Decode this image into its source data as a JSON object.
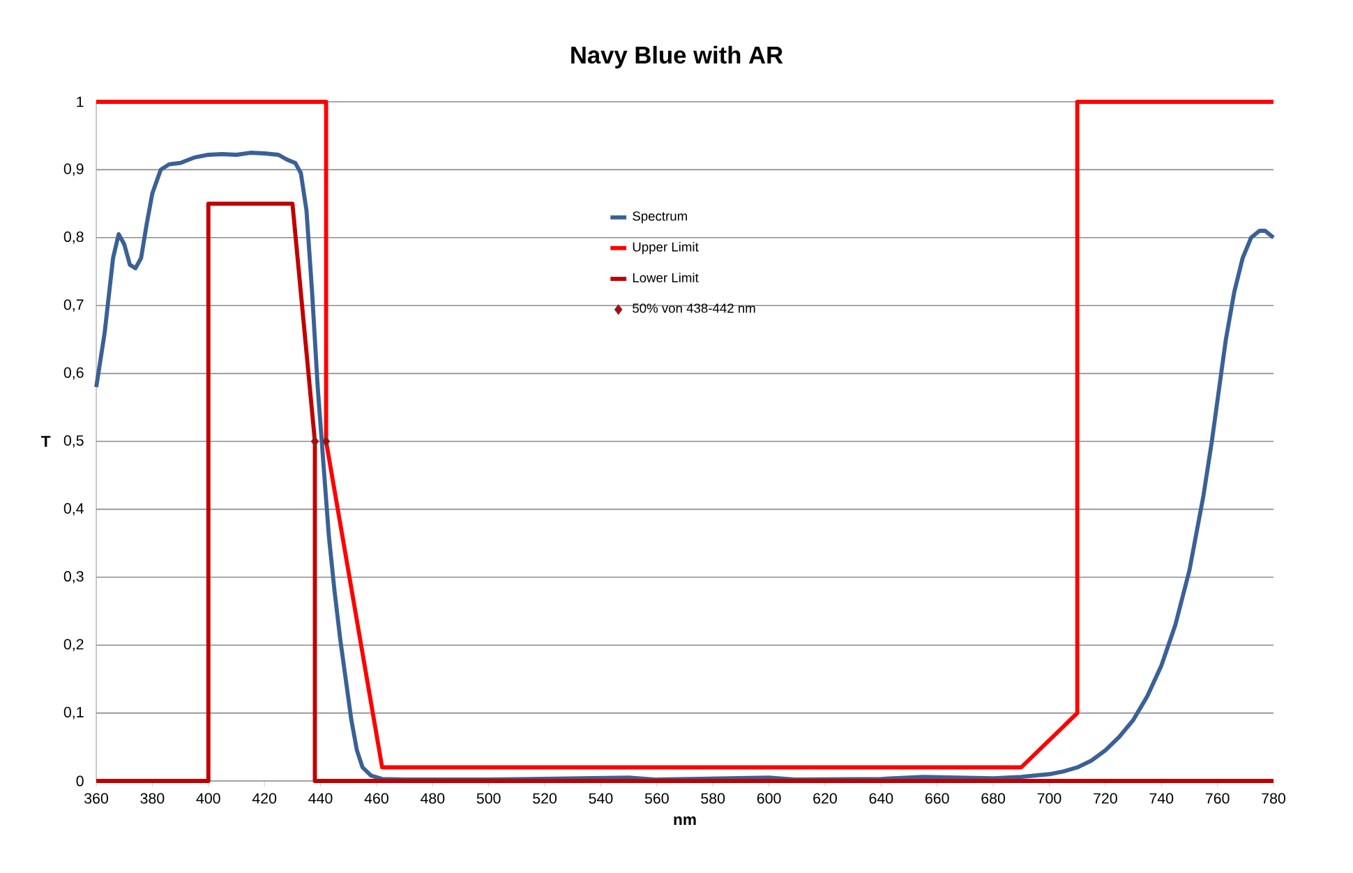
{
  "chart_data": {
    "type": "line",
    "title": "Navy Blue with AR",
    "xlabel": "nm",
    "ylabel": "T",
    "xlim": [
      360,
      780
    ],
    "ylim": [
      0,
      1
    ],
    "xticks": [
      360,
      380,
      400,
      420,
      440,
      460,
      480,
      500,
      520,
      540,
      560,
      580,
      600,
      620,
      640,
      660,
      680,
      700,
      720,
      740,
      760,
      780
    ],
    "yticks": [
      0,
      {
        "value": 0.1,
        "label": "0,1"
      },
      {
        "value": 0.2,
        "label": "0,2"
      },
      {
        "value": 0.3,
        "label": "0,3"
      },
      {
        "value": 0.4,
        "label": "0,4"
      },
      {
        "value": 0.5,
        "label": "0,5"
      },
      {
        "value": 0.6,
        "label": "0,6"
      },
      {
        "value": 0.7,
        "label": "0,7"
      },
      {
        "value": 0.8,
        "label": "0,8"
      },
      {
        "value": 0.9,
        "label": "0,9"
      },
      1
    ],
    "grid": "y",
    "legend": "top",
    "series": [
      {
        "name": "Spectrum",
        "color": "#3a6196",
        "x": [
          360,
          363,
          366,
          368,
          370,
          372,
          374,
          376,
          378,
          380,
          383,
          386,
          390,
          395,
          400,
          405,
          410,
          415,
          420,
          425,
          428,
          431,
          433,
          435,
          437,
          439,
          441,
          443,
          445,
          447,
          449,
          451,
          453,
          455,
          458,
          462,
          470,
          500,
          550,
          560,
          600,
          610,
          640,
          655,
          680,
          690,
          700,
          705,
          710,
          715,
          720,
          725,
          730,
          735,
          740,
          745,
          750,
          755,
          758,
          760,
          763,
          766,
          769,
          772,
          775,
          777,
          780
        ],
        "values": [
          0.58,
          0.66,
          0.77,
          0.805,
          0.79,
          0.76,
          0.755,
          0.77,
          0.82,
          0.865,
          0.9,
          0.908,
          0.91,
          0.918,
          0.922,
          0.923,
          0.922,
          0.925,
          0.924,
          0.922,
          0.915,
          0.91,
          0.895,
          0.84,
          0.72,
          0.58,
          0.47,
          0.36,
          0.28,
          0.21,
          0.15,
          0.09,
          0.045,
          0.02,
          0.008,
          0.003,
          0.002,
          0.002,
          0.005,
          0.002,
          0.005,
          0.002,
          0.003,
          0.006,
          0.004,
          0.006,
          0.01,
          0.014,
          0.02,
          0.03,
          0.045,
          0.065,
          0.09,
          0.125,
          0.17,
          0.23,
          0.31,
          0.42,
          0.5,
          0.56,
          0.65,
          0.72,
          0.77,
          0.8,
          0.81,
          0.81,
          0.8
        ]
      },
      {
        "name": "Upper Limit",
        "color": "#ff0000",
        "x": [
          360,
          442,
          442,
          462,
          690,
          710,
          710,
          780
        ],
        "values": [
          1,
          1,
          0.5,
          0.02,
          0.02,
          0.1,
          1,
          1
        ]
      },
      {
        "name": "Lower Limit",
        "color": "#c00000",
        "x": [
          360,
          400,
          400,
          430,
          438,
          438,
          780
        ],
        "values": [
          0,
          0,
          0.85,
          0.85,
          0.5,
          0,
          0
        ]
      },
      {
        "name": "50% von 438-442 nm",
        "type": "scatter",
        "marker": "diamond",
        "color": "#c00000",
        "x": [
          438,
          442
        ],
        "values": [
          0.5,
          0.5
        ]
      }
    ]
  }
}
